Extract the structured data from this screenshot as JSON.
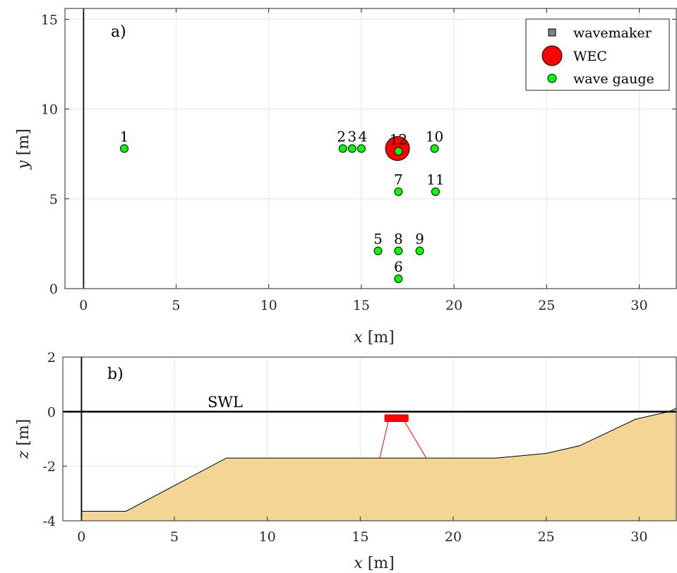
{
  "chart_data": [
    {
      "type": "scatter",
      "panel_label": "a)",
      "xlabel_var": "x",
      "xlabel_unit": "[m]",
      "ylabel_var": "y",
      "ylabel_unit": "[m]",
      "xlim": [
        -1.0,
        32.0
      ],
      "ylim": [
        0,
        15.6
      ],
      "xticks": [
        0,
        5,
        10,
        15,
        20,
        25,
        30
      ],
      "yticks": [
        0,
        5,
        10,
        15
      ],
      "grid": true,
      "legend_position": "top-right",
      "wavemaker": {
        "x0": -1.0,
        "x1": 0.0,
        "color": "#808080"
      },
      "wec": {
        "x": 16.95,
        "y": 7.8,
        "color": "#ff0000"
      },
      "gauge_color": "#00ff00",
      "legend": [
        {
          "label": "wavemaker",
          "marker": "square"
        },
        {
          "label": "WEC",
          "marker": "big-circle"
        },
        {
          "label": "wave gauge",
          "marker": "circle"
        }
      ],
      "gauges": [
        {
          "label": "1",
          "x": 2.2,
          "y": 7.8
        },
        {
          "label": "2",
          "x": 14.0,
          "y": 7.8
        },
        {
          "label": "3",
          "x": 14.5,
          "y": 7.8
        },
        {
          "label": "4",
          "x": 15.0,
          "y": 7.8
        },
        {
          "label": "5",
          "x": 15.9,
          "y": 2.1
        },
        {
          "label": "6",
          "x": 17.0,
          "y": 0.55
        },
        {
          "label": "7",
          "x": 17.0,
          "y": 5.4
        },
        {
          "label": "8",
          "x": 17.0,
          "y": 2.1
        },
        {
          "label": "9",
          "x": 18.15,
          "y": 2.1
        },
        {
          "label": "10",
          "x": 18.95,
          "y": 7.8
        },
        {
          "label": "11",
          "x": 19.0,
          "y": 5.4
        },
        {
          "label": "12",
          "x": 17.0,
          "y": 7.65
        }
      ]
    },
    {
      "type": "area",
      "panel_label": "b)",
      "xlabel_var": "x",
      "xlabel_unit": "[m]",
      "ylabel_var": "z",
      "ylabel_unit": "[m]",
      "xlim": [
        -1.0,
        32.0
      ],
      "ylim": [
        -4,
        2
      ],
      "xticks": [
        0,
        5,
        10,
        15,
        20,
        25,
        30
      ],
      "yticks": [
        -4,
        -2,
        0,
        2
      ],
      "grid": true,
      "swl_label": "SWL",
      "swl_level": 0,
      "wavemaker": {
        "x0": -1.0,
        "x1": 0.0,
        "color": "#808080"
      },
      "bed_color": "#f3d596",
      "bed": [
        {
          "x": 0.0,
          "z": -3.65
        },
        {
          "x": 2.4,
          "z": -3.65
        },
        {
          "x": 7.8,
          "z": -1.7
        },
        {
          "x": 22.3,
          "z": -1.7
        },
        {
          "x": 25.0,
          "z": -1.53
        },
        {
          "x": 26.8,
          "z": -1.25
        },
        {
          "x": 29.8,
          "z": -0.28
        },
        {
          "x": 31.6,
          "z": 0.0
        },
        {
          "x": 32.0,
          "z": 0.12
        }
      ],
      "wec_body": {
        "x0": 16.3,
        "x1": 17.6,
        "z0": -0.38,
        "z1": -0.1,
        "color": "#ff0000"
      },
      "moorings": [
        {
          "x_top": 16.5,
          "z_top": -0.38,
          "x_bottom": 16.05,
          "z_bottom": -1.7
        },
        {
          "x_top": 17.4,
          "z_top": -0.38,
          "x_bottom": 18.55,
          "z_bottom": -1.7
        }
      ]
    }
  ]
}
